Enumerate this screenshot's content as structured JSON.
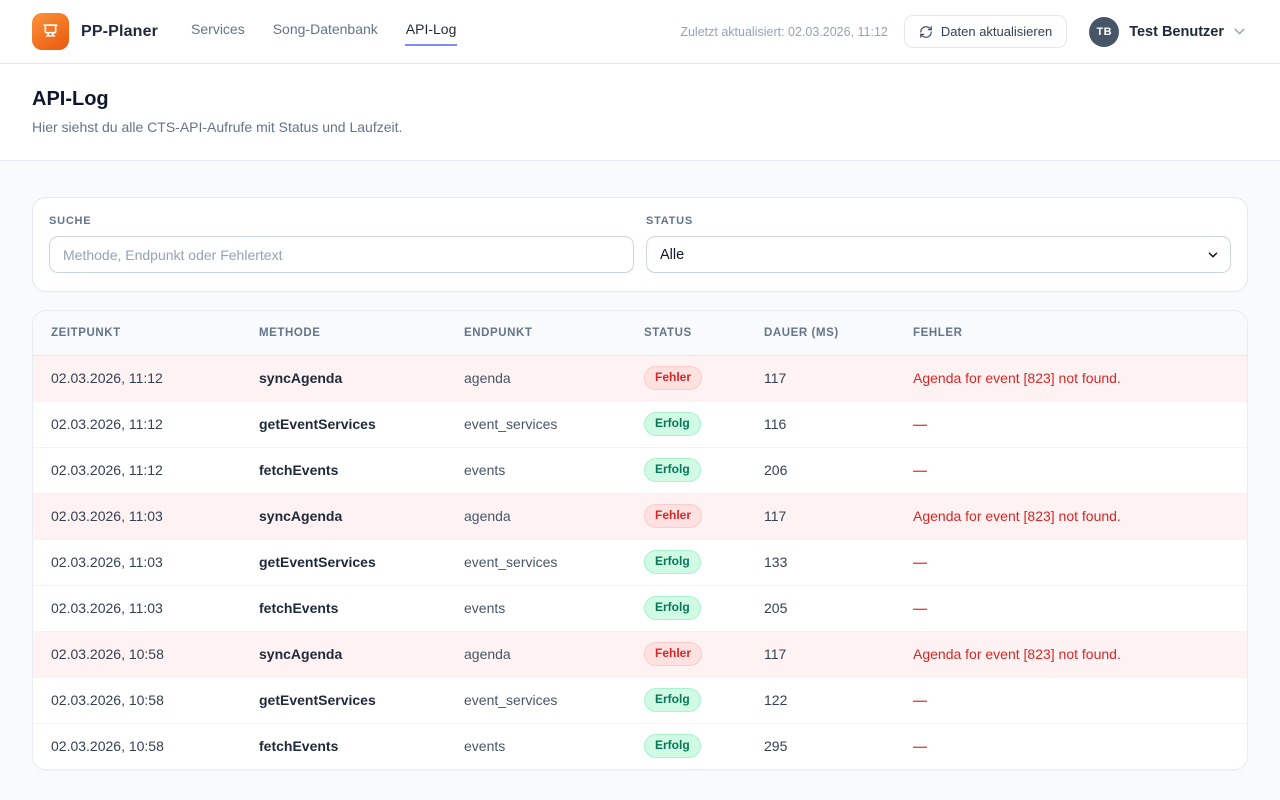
{
  "header": {
    "brand": "PP-Planer",
    "nav": [
      {
        "label": "Services",
        "active": false
      },
      {
        "label": "Song-Datenbank",
        "active": false
      },
      {
        "label": "API-Log",
        "active": true
      }
    ],
    "last_updated": "Zuletzt aktualisiert: 02.03.2026, 11:12",
    "refresh_button_label": "Daten aktualisieren",
    "user": {
      "initials": "TB",
      "name": "Test Benutzer"
    }
  },
  "page": {
    "title": "API-Log",
    "subtitle": "Hier siehst du alle CTS-API-Aufrufe mit Status und Laufzeit."
  },
  "filters": {
    "search_label": "SUCHE",
    "search_placeholder": "Methode, Endpunkt oder Fehlertext",
    "search_value": "",
    "status_label": "STATUS",
    "status_value": "Alle"
  },
  "table": {
    "columns": [
      "ZEITPUNKT",
      "METHODE",
      "ENDPUNKT",
      "STATUS",
      "DAUER (MS)",
      "FEHLER"
    ],
    "status_error_label": "Fehler",
    "status_success_label": "Erfolg",
    "empty_error": "—",
    "rows": [
      {
        "time": "02.03.2026, 11:12",
        "method": "syncAgenda",
        "endpoint": "agenda",
        "status": "Fehler",
        "duration": "117",
        "error": "Agenda for event [823] not found."
      },
      {
        "time": "02.03.2026, 11:12",
        "method": "getEventServices",
        "endpoint": "event_services",
        "status": "Erfolg",
        "duration": "116",
        "error": "—"
      },
      {
        "time": "02.03.2026, 11:12",
        "method": "fetchEvents",
        "endpoint": "events",
        "status": "Erfolg",
        "duration": "206",
        "error": "—"
      },
      {
        "time": "02.03.2026, 11:03",
        "method": "syncAgenda",
        "endpoint": "agenda",
        "status": "Fehler",
        "duration": "117",
        "error": "Agenda for event [823] not found."
      },
      {
        "time": "02.03.2026, 11:03",
        "method": "getEventServices",
        "endpoint": "event_services",
        "status": "Erfolg",
        "duration": "133",
        "error": "—"
      },
      {
        "time": "02.03.2026, 11:03",
        "method": "fetchEvents",
        "endpoint": "events",
        "status": "Erfolg",
        "duration": "205",
        "error": "—"
      },
      {
        "time": "02.03.2026, 10:58",
        "method": "syncAgenda",
        "endpoint": "agenda",
        "status": "Fehler",
        "duration": "117",
        "error": "Agenda for event [823] not found."
      },
      {
        "time": "02.03.2026, 10:58",
        "method": "getEventServices",
        "endpoint": "event_services",
        "status": "Erfolg",
        "duration": "122",
        "error": "—"
      },
      {
        "time": "02.03.2026, 10:58",
        "method": "fetchEvents",
        "endpoint": "events",
        "status": "Erfolg",
        "duration": "295",
        "error": "—"
      }
    ]
  },
  "colors": {
    "brand_gradient_start": "#fb923c",
    "brand_gradient_end": "#ea580c",
    "active_tab_underline": "#818cf8",
    "page_background": "#f8fafc",
    "error_text": "#dc2626",
    "error_row_background": "#fef2f2",
    "error_badge_background": "#fee2e2",
    "success_badge_background": "#d1fae5",
    "success_badge_text": "#047857",
    "avatar_background": "#475569"
  }
}
